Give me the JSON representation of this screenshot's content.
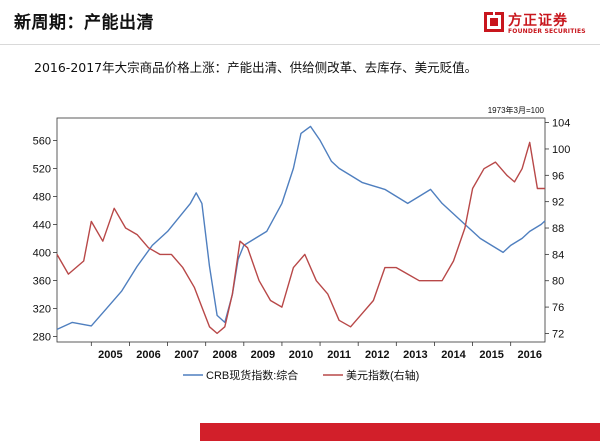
{
  "header": {
    "title": "新周期：产能出清",
    "logo_cn": "方正证券",
    "logo_en": "FOUNDER SECURITIES",
    "brand_color": "#c8161d"
  },
  "subtitle": "2016-2017年大宗商品价格上涨：产能出清、供给侧改革、去库存、美元贬值。",
  "chart_data": {
    "type": "line",
    "annotation": "1973年3月=100",
    "x_ticks": [
      "2005",
      "2006",
      "2007",
      "2008",
      "2009",
      "2010",
      "2011",
      "2012",
      "2013",
      "2014",
      "2015",
      "2016"
    ],
    "xlim": [
      2004.1,
      2016.9
    ],
    "y_left": {
      "lim": [
        272,
        592
      ],
      "ticks": [
        280,
        320,
        360,
        400,
        440,
        480,
        520,
        560
      ]
    },
    "y_right": {
      "lim": [
        70.7,
        104.7
      ],
      "ticks": [
        72,
        76,
        80,
        84,
        88,
        92,
        96,
        100,
        104
      ]
    },
    "grid": false,
    "legend_position": "bottom",
    "series": [
      {
        "name": "CRB现货指数:综合",
        "axis": "left",
        "color": "#4f7fbf",
        "x": [
          2004.1,
          2004.5,
          2005.0,
          2005.4,
          2005.8,
          2006.2,
          2006.6,
          2007.0,
          2007.3,
          2007.6,
          2007.75,
          2007.9,
          2008.1,
          2008.3,
          2008.5,
          2008.7,
          2008.85,
          2009.0,
          2009.3,
          2009.6,
          2010.0,
          2010.3,
          2010.5,
          2010.75,
          2011.0,
          2011.3,
          2011.5,
          2011.8,
          2012.1,
          2012.4,
          2012.7,
          2013.0,
          2013.3,
          2013.6,
          2013.9,
          2014.2,
          2014.5,
          2014.8,
          2015.0,
          2015.2,
          2015.5,
          2015.8,
          2016.0,
          2016.3,
          2016.5,
          2016.8,
          2016.9
        ],
        "y": [
          290,
          300,
          295,
          320,
          345,
          380,
          410,
          430,
          450,
          470,
          485,
          470,
          380,
          310,
          300,
          340,
          390,
          410,
          420,
          430,
          470,
          520,
          570,
          580,
          560,
          530,
          520,
          510,
          500,
          495,
          490,
          480,
          470,
          480,
          490,
          470,
          455,
          440,
          430,
          420,
          410,
          400,
          410,
          420,
          430,
          440,
          445
        ]
      },
      {
        "name": "美元指数(右轴)",
        "axis": "right",
        "color": "#b84848",
        "x": [
          2004.1,
          2004.4,
          2004.8,
          2005.0,
          2005.3,
          2005.6,
          2005.9,
          2006.2,
          2006.5,
          2006.8,
          2007.1,
          2007.4,
          2007.7,
          2007.9,
          2008.1,
          2008.3,
          2008.5,
          2008.7,
          2008.9,
          2009.1,
          2009.4,
          2009.7,
          2010.0,
          2010.3,
          2010.6,
          2010.9,
          2011.2,
          2011.5,
          2011.8,
          2012.1,
          2012.4,
          2012.7,
          2013.0,
          2013.3,
          2013.6,
          2013.9,
          2014.2,
          2014.5,
          2014.8,
          2015.0,
          2015.3,
          2015.6,
          2015.9,
          2016.1,
          2016.3,
          2016.5,
          2016.7,
          2016.9
        ],
        "y": [
          84,
          81,
          83,
          89,
          86,
          91,
          88,
          87,
          85,
          84,
          84,
          82,
          79,
          76,
          73,
          72,
          73,
          78,
          86,
          85,
          80,
          77,
          76,
          82,
          84,
          80,
          78,
          74,
          73,
          75,
          77,
          82,
          82,
          81,
          80,
          80,
          80,
          83,
          88,
          94,
          97,
          98,
          96,
          95,
          97,
          101,
          94,
          94
        ]
      }
    ]
  }
}
